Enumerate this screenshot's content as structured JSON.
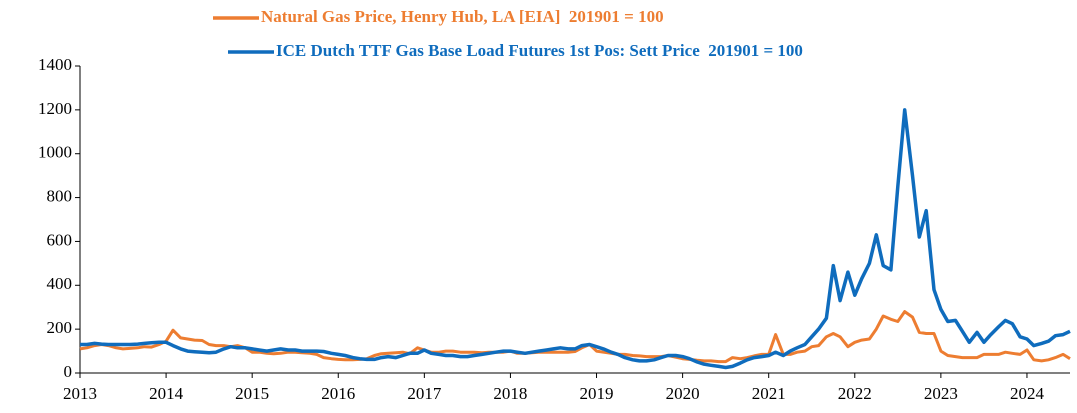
{
  "chart_data": {
    "type": "line",
    "x": [
      2013,
      2013.08,
      2013.17,
      2013.25,
      2013.33,
      2013.42,
      2013.5,
      2013.58,
      2013.67,
      2013.75,
      2013.83,
      2013.92,
      2014,
      2014.08,
      2014.17,
      2014.25,
      2014.33,
      2014.42,
      2014.5,
      2014.58,
      2014.67,
      2014.75,
      2014.83,
      2014.92,
      2015,
      2015.08,
      2015.17,
      2015.25,
      2015.33,
      2015.42,
      2015.5,
      2015.58,
      2015.67,
      2015.75,
      2015.83,
      2015.92,
      2016,
      2016.08,
      2016.17,
      2016.25,
      2016.33,
      2016.42,
      2016.5,
      2016.58,
      2016.67,
      2016.75,
      2016.83,
      2016.92,
      2017,
      2017.08,
      2017.17,
      2017.25,
      2017.33,
      2017.42,
      2017.5,
      2017.58,
      2017.67,
      2017.75,
      2017.83,
      2017.92,
      2018,
      2018.08,
      2018.17,
      2018.25,
      2018.33,
      2018.42,
      2018.5,
      2018.58,
      2018.67,
      2018.75,
      2018.83,
      2018.92,
      2019,
      2019.08,
      2019.17,
      2019.25,
      2019.33,
      2019.42,
      2019.5,
      2019.58,
      2019.67,
      2019.75,
      2019.83,
      2019.92,
      2020,
      2020.08,
      2020.17,
      2020.25,
      2020.33,
      2020.42,
      2020.5,
      2020.58,
      2020.67,
      2020.75,
      2020.83,
      2020.92,
      2021,
      2021.08,
      2021.17,
      2021.25,
      2021.33,
      2021.42,
      2021.5,
      2021.58,
      2021.67,
      2021.75,
      2021.83,
      2021.92,
      2022,
      2022.08,
      2022.17,
      2022.25,
      2022.33,
      2022.42,
      2022.5,
      2022.58,
      2022.67,
      2022.75,
      2022.83,
      2022.92,
      2023,
      2023.08,
      2023.17,
      2023.25,
      2023.33,
      2023.42,
      2023.5,
      2023.58,
      2023.67,
      2023.75,
      2023.83,
      2023.92,
      2024,
      2024.08,
      2024.17,
      2024.25,
      2024.33,
      2024.42,
      2024.5
    ],
    "series": [
      {
        "name": "Natural Gas Price, Henry Hub, LA [EIA]  201901 = 100",
        "color": "#ed7d31",
        "values": [
          110,
          115,
          125,
          130,
          125,
          115,
          110,
          112,
          115,
          120,
          118,
          130,
          145,
          195,
          160,
          155,
          150,
          148,
          130,
          125,
          125,
          120,
          125,
          115,
          95,
          95,
          90,
          88,
          90,
          95,
          95,
          92,
          90,
          85,
          70,
          65,
          62,
          60,
          60,
          62,
          65,
          80,
          88,
          90,
          92,
          95,
          88,
          115,
          105,
          95,
          95,
          100,
          100,
          95,
          95,
          95,
          92,
          95,
          95,
          95,
          100,
          90,
          90,
          92,
          95,
          95,
          95,
          95,
          95,
          98,
          115,
          130,
          100,
          95,
          90,
          85,
          85,
          80,
          78,
          75,
          75,
          75,
          80,
          72,
          65,
          62,
          58,
          55,
          55,
          52,
          52,
          70,
          65,
          70,
          78,
          85,
          85,
          175,
          85,
          85,
          95,
          100,
          120,
          125,
          165,
          180,
          165,
          120,
          140,
          150,
          155,
          200,
          260,
          245,
          235,
          280,
          255,
          185,
          180,
          180,
          100,
          80,
          75,
          70,
          70,
          70,
          85,
          85,
          85,
          95,
          90,
          85,
          105,
          60,
          55,
          60,
          70,
          85,
          65
        ]
      },
      {
        "name": "ICE Dutch TTF Gas Base Load Futures 1st Pos: Sett Price  201901 = 100",
        "color": "#0f6cbd",
        "values": [
          130,
          130,
          135,
          132,
          130,
          130,
          130,
          130,
          132,
          135,
          138,
          140,
          140,
          125,
          110,
          100,
          97,
          95,
          92,
          95,
          110,
          120,
          115,
          115,
          110,
          105,
          100,
          105,
          110,
          105,
          105,
          100,
          100,
          100,
          98,
          90,
          85,
          80,
          70,
          65,
          62,
          62,
          70,
          75,
          70,
          80,
          90,
          90,
          105,
          90,
          85,
          80,
          80,
          75,
          75,
          80,
          85,
          90,
          95,
          100,
          100,
          95,
          90,
          95,
          100,
          105,
          110,
          115,
          110,
          110,
          125,
          130,
          120,
          110,
          95,
          85,
          70,
          60,
          55,
          55,
          60,
          70,
          80,
          80,
          75,
          65,
          50,
          40,
          35,
          30,
          25,
          30,
          45,
          60,
          70,
          75,
          80,
          95,
          80,
          100,
          115,
          130,
          165,
          200,
          250,
          490,
          330,
          460,
          355,
          430,
          500,
          630,
          490,
          470,
          850,
          1200,
          900,
          620,
          740,
          380,
          290,
          235,
          240,
          190,
          140,
          185,
          140,
          175,
          210,
          240,
          225,
          165,
          155,
          125,
          135,
          145,
          170,
          175,
          190
        ]
      }
    ],
    "xlim": [
      2013,
      2024.5
    ],
    "xticks": [
      2013,
      2014,
      2015,
      2016,
      2017,
      2018,
      2019,
      2020,
      2021,
      2022,
      2023,
      2024
    ],
    "ylim": [
      0,
      1400
    ],
    "yticks": [
      0,
      200,
      400,
      600,
      800,
      1000,
      1200,
      1400
    ]
  }
}
